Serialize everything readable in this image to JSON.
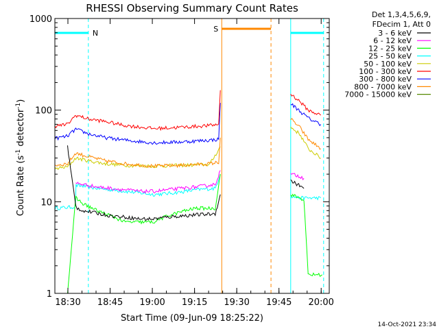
{
  "chart_data": {
    "type": "line",
    "title": "RHESSI Observing Summary Count Rates",
    "xlabel": "Start Time (09-Jun-09 18:25:22)",
    "ylabel_main": "Count Rate (s",
    "ylabel_sup1": "-1",
    "ylabel_mid": " detector",
    "ylabel_sup2": "-1",
    "ylabel_end": ")",
    "x_ticks": [
      "18:30",
      "18:45",
      "19:00",
      "19:15",
      "19:30",
      "19:45",
      "20:00"
    ],
    "x_tick_minutes": [
      4.63,
      19.63,
      34.63,
      49.63,
      64.63,
      79.63,
      94.63
    ],
    "xlim_minutes": [
      0,
      97.5
    ],
    "y_scale": "log",
    "ylim": [
      1,
      1000
    ],
    "y_ticks": [
      "1",
      "10",
      "100",
      "1000"
    ],
    "y_tick_values": [
      1,
      10,
      100,
      1000
    ],
    "legend_header": [
      "Det 1,3,4,5,6,9,",
      "FDecim 1, Att 0"
    ],
    "series": [
      {
        "name": "3 - 6 keV",
        "color": "#000000",
        "segments": [
          [
            [
              4.5,
              40
            ],
            [
              7.4,
              9
            ],
            [
              8,
              8.5
            ],
            [
              10,
              8
            ],
            [
              12,
              7.8
            ],
            [
              15,
              7.5
            ],
            [
              20,
              7
            ],
            [
              25,
              6.8
            ],
            [
              30,
              6.5
            ],
            [
              35,
              6.5
            ],
            [
              40,
              6.8
            ],
            [
              45,
              7
            ],
            [
              50,
              7.2
            ],
            [
              54,
              7.3
            ],
            [
              57,
              7.4
            ],
            [
              58.8,
              12
            ]
          ],
          [
            [
              83.8,
              17
            ],
            [
              87,
              15
            ],
            [
              88.5,
              14
            ]
          ]
        ]
      },
      {
        "name": "6 - 12 keV",
        "color": "#ff00ff",
        "segments": [
          [
            [
              7.4,
              16
            ],
            [
              10,
              15.5
            ],
            [
              15,
              14.5
            ],
            [
              20,
              14
            ],
            [
              25,
              13.5
            ],
            [
              30,
              13
            ],
            [
              35,
              13
            ],
            [
              40,
              13.5
            ],
            [
              45,
              14
            ],
            [
              50,
              14.5
            ],
            [
              54,
              15
            ],
            [
              57,
              15.5
            ],
            [
              58.8,
              22
            ]
          ],
          [
            [
              83.8,
              20
            ],
            [
              87,
              19
            ],
            [
              88.5,
              18
            ]
          ]
        ]
      },
      {
        "name": "12 - 25 keV",
        "color": "#00ff00",
        "segments": [
          [
            [
              3.5,
              1
            ],
            [
              4.5,
              1
            ],
            [
              7.4,
              11
            ],
            [
              10,
              9.5
            ],
            [
              15,
              8
            ],
            [
              20,
              7
            ],
            [
              25,
              6
            ],
            [
              30,
              6
            ],
            [
              35,
              6
            ],
            [
              40,
              7
            ],
            [
              45,
              7.8
            ],
            [
              50,
              8.5
            ],
            [
              54,
              8.5
            ],
            [
              57,
              8.5
            ],
            [
              58.8,
              20
            ]
          ],
          [
            [
              83.8,
              12
            ],
            [
              87,
              11
            ],
            [
              88.5,
              10.5
            ],
            [
              90,
              1.6
            ],
            [
              93,
              1.6
            ],
            [
              95,
              1.6
            ]
          ]
        ]
      },
      {
        "name": "25 - 50 keV",
        "color": "#00ffff",
        "segments": [
          [
            [
              0,
              8.5
            ],
            [
              7.3,
              8.8
            ],
            [
              7.5,
              15
            ],
            [
              10,
              14.8
            ],
            [
              15,
              14
            ],
            [
              20,
              13.5
            ],
            [
              25,
              13
            ],
            [
              30,
              12.5
            ],
            [
              35,
              12
            ],
            [
              40,
              12.3
            ],
            [
              45,
              12.8
            ],
            [
              50,
              13.5
            ],
            [
              54,
              13.8
            ],
            [
              57,
              14
            ],
            [
              58.8,
              20
            ]
          ],
          [
            [
              83.8,
              11.5
            ],
            [
              87,
              11
            ],
            [
              90,
              11
            ],
            [
              94.5,
              11
            ]
          ]
        ]
      },
      {
        "name": "50 - 100 keV",
        "color": "#cccc00",
        "segments": [
          [
            [
              0,
              23
            ],
            [
              4.5,
              24
            ],
            [
              7.4,
              30
            ],
            [
              12,
              28
            ],
            [
              18,
              26
            ],
            [
              25,
              25
            ],
            [
              35,
              24.5
            ],
            [
              45,
              25
            ],
            [
              55,
              25.5
            ],
            [
              58.8,
              40
            ]
          ],
          [
            [
              83.8,
              65
            ],
            [
              87,
              55
            ],
            [
              90,
              38
            ],
            [
              94.5,
              30
            ]
          ]
        ]
      },
      {
        "name": "100 - 300 keV",
        "color": "#ff0000",
        "segments": [
          [
            [
              0,
              67
            ],
            [
              4.5,
              70
            ],
            [
              7.4,
              88
            ],
            [
              12,
              80
            ],
            [
              18,
              75
            ],
            [
              25,
              68
            ],
            [
              35,
              63
            ],
            [
              45,
              65
            ],
            [
              55,
              68
            ],
            [
              58.2,
              70
            ],
            [
              58.8,
              165
            ]
          ],
          [
            [
              83.8,
              150
            ],
            [
              87,
              125
            ],
            [
              90,
              100
            ],
            [
              94.5,
              88
            ]
          ]
        ]
      },
      {
        "name": "300 - 800 keV",
        "color": "#0000ff",
        "segments": [
          [
            [
              0,
              49
            ],
            [
              4.5,
              52
            ],
            [
              7.4,
              62
            ],
            [
              12,
              55
            ],
            [
              18,
              50
            ],
            [
              25,
              47
            ],
            [
              35,
              44
            ],
            [
              45,
              45
            ],
            [
              55,
              47
            ],
            [
              58.2,
              48
            ],
            [
              58.8,
              120
            ]
          ],
          [
            [
              83.8,
              118
            ],
            [
              87,
              98
            ],
            [
              90,
              82
            ],
            [
              94.5,
              70
            ]
          ]
        ]
      },
      {
        "name": "800 - 7000 keV",
        "color": "#ff8800",
        "segments": [
          [
            [
              0,
              25
            ],
            [
              4.5,
              26
            ],
            [
              7.4,
              34
            ],
            [
              12,
              31
            ],
            [
              18,
              28
            ],
            [
              25,
              26
            ],
            [
              35,
              24.5
            ],
            [
              45,
              25
            ],
            [
              55,
              26
            ],
            [
              58.2,
              27
            ],
            [
              58.8,
              50
            ]
          ],
          [
            [
              83.8,
              80
            ],
            [
              87,
              65
            ],
            [
              90,
              48
            ],
            [
              94.5,
              38
            ]
          ]
        ]
      },
      {
        "name": "7000 - 15000 keV",
        "color": "#558800",
        "segments": []
      }
    ],
    "annotations": {
      "night_label": "N",
      "saa_label": "S",
      "night_color": "#00ffff",
      "saa_color": "#ff8800",
      "night_intervals_minutes": [
        [
          0,
          11.9
        ],
        [
          83.8,
          95.5
        ]
      ],
      "saa_interval_minutes": [
        59.3,
        76.8
      ]
    },
    "grid": false,
    "legend_position": "right"
  },
  "footer": {
    "timestamp": "14-Oct-2021 23:34"
  }
}
